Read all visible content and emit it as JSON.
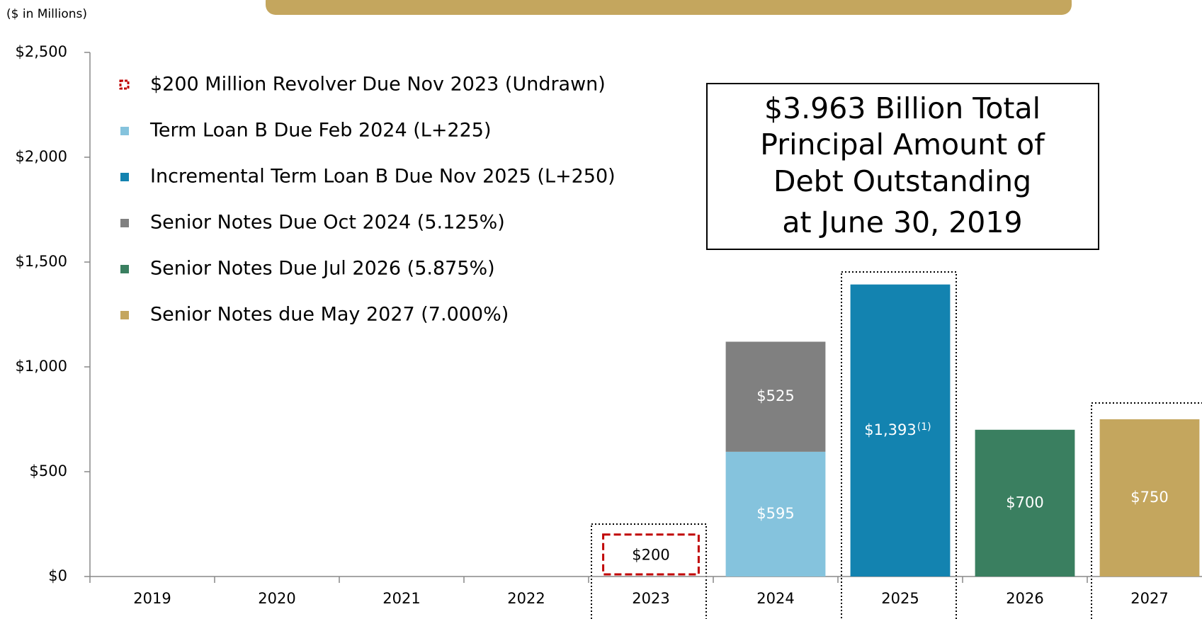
{
  "chart_data": {
    "type": "bar",
    "stacked": true,
    "note": "($ in Millions)",
    "annotation": [
      "$3.963 Billion Total",
      "Principal Amount of",
      "Debt Outstanding",
      "at June 30, 2019"
    ],
    "categories": [
      "2019",
      "2020",
      "2021",
      "2022",
      "2023",
      "2024",
      "2025",
      "2026",
      "2027"
    ],
    "series": [
      {
        "name": "$200 Million Revolver Due Nov 2023 (Undrawn)",
        "color": "#c00000",
        "style": "dashed",
        "values": [
          null,
          null,
          null,
          null,
          200,
          null,
          null,
          null,
          null
        ],
        "value_labels": [
          null,
          null,
          null,
          null,
          "$200",
          null,
          null,
          null,
          null
        ]
      },
      {
        "name": "Term Loan B Due Feb 2024 (L+225)",
        "color": "#85c3dd",
        "values": [
          null,
          null,
          null,
          null,
          null,
          595,
          null,
          null,
          null
        ],
        "value_labels": [
          null,
          null,
          null,
          null,
          null,
          "$595",
          null,
          null,
          null
        ]
      },
      {
        "name": "Incremental Term Loan B Due Nov 2025 (L+250)",
        "color": "#1383b0",
        "values": [
          null,
          null,
          null,
          null,
          null,
          null,
          1393,
          null,
          null
        ],
        "value_labels": [
          null,
          null,
          null,
          null,
          null,
          null,
          "$1,393",
          null,
          null
        ],
        "value_label_notes": [
          null,
          null,
          null,
          null,
          null,
          null,
          "(1)",
          null,
          null
        ]
      },
      {
        "name": "Senior Notes Due Oct 2024 (5.125%)",
        "color": "#808080",
        "values": [
          null,
          null,
          null,
          null,
          null,
          525,
          null,
          null,
          null
        ],
        "value_labels": [
          null,
          null,
          null,
          null,
          null,
          "$525",
          null,
          null,
          null
        ]
      },
      {
        "name": "Senior Notes Due Jul 2026 (5.875%)",
        "color": "#3a7f60",
        "values": [
          null,
          null,
          null,
          null,
          null,
          null,
          null,
          700,
          null
        ],
        "value_labels": [
          null,
          null,
          null,
          null,
          null,
          null,
          null,
          "$700",
          null
        ]
      },
      {
        "name": "Senior Notes due May 2027 (7.000%)",
        "color": "#c4a65e",
        "values": [
          null,
          null,
          null,
          null,
          null,
          null,
          null,
          null,
          750
        ],
        "value_labels": [
          null,
          null,
          null,
          null,
          null,
          null,
          null,
          null,
          "$750"
        ]
      }
    ],
    "ylim": [
      0,
      2500
    ],
    "yticks": [
      {
        "value": 0,
        "label": "$0"
      },
      {
        "value": 500,
        "label": "$500"
      },
      {
        "value": 1000,
        "label": "$1,000"
      },
      {
        "value": 1500,
        "label": "$1,500"
      },
      {
        "value": 2000,
        "label": "$2,000"
      },
      {
        "value": 2500,
        "label": "$2,500"
      }
    ]
  }
}
